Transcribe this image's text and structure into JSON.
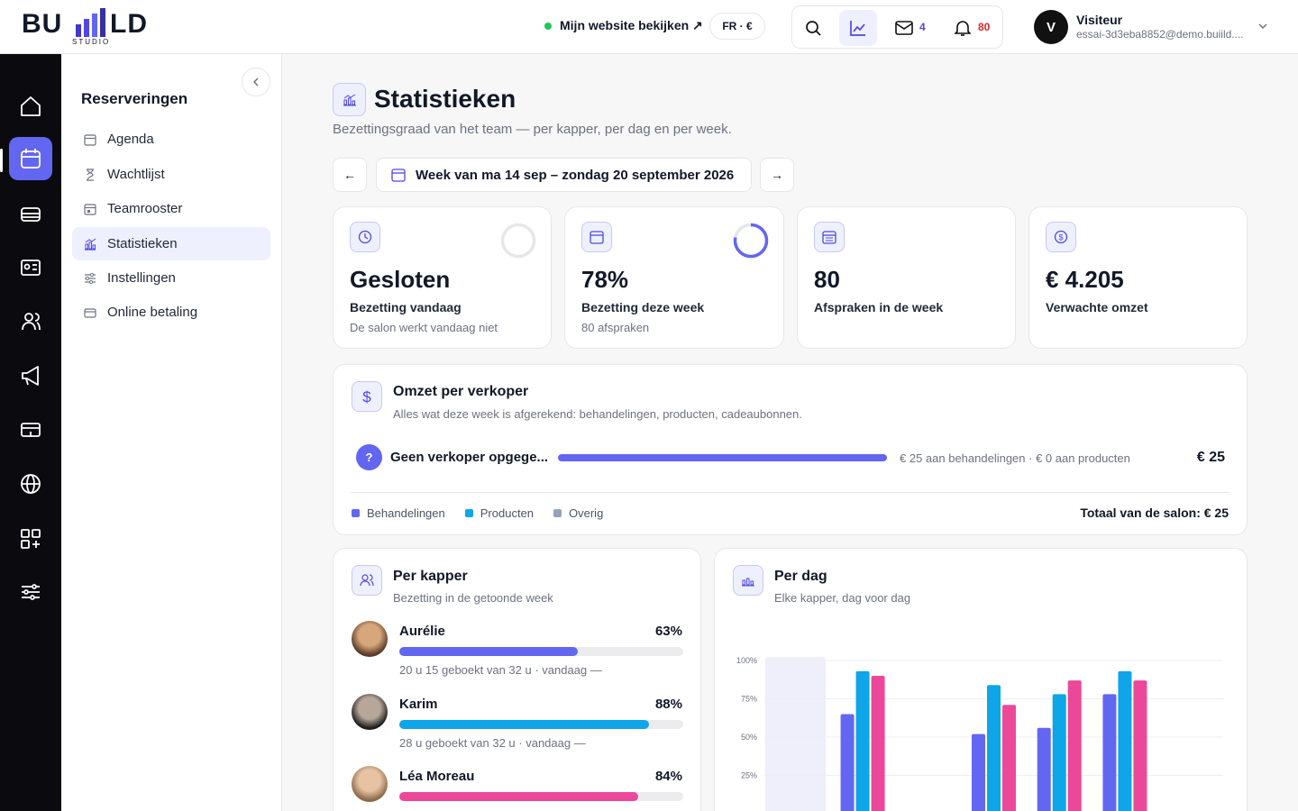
{
  "header": {
    "logo": {
      "left": "BU",
      "right": "LD",
      "sub": "STUDIO"
    },
    "website_link": "Mijn website bekijken ↗",
    "locale": "FR · €",
    "messages": 4,
    "notifications": 80,
    "user": {
      "initial": "V",
      "name": "Visiteur",
      "email": "essai-3d3eba8852@demo.buiild...."
    }
  },
  "sidebar": {
    "title": "Reserveringen",
    "items": [
      "Agenda",
      "Wachtlijst",
      "Teamrooster",
      "Statistieken",
      "Instellingen",
      "Online betaling"
    ]
  },
  "page": {
    "title": "Statistieken",
    "subtitle": "Bezettingsgraad van het team — per kapper, per dag en per week.",
    "prev": "←",
    "week": "Week van ma 14 sep – zondag 20 september 2026",
    "next": "→"
  },
  "kpis": [
    {
      "value": "Gesloten",
      "label": "Bezetting vandaag",
      "note": "De salon werkt vandaag niet"
    },
    {
      "value": 78,
      "value_label": "78%",
      "label": "Bezetting deze week",
      "note": "80 afspraken"
    },
    {
      "value": 80,
      "label": "Afspraken in de week"
    },
    {
      "value": "€ 4.205",
      "label": "Verwachte omzet"
    }
  ],
  "revenue": {
    "title": "Omzet per verkoper",
    "subtitle": "Alles wat deze week is afgerekend: behandelingen, producten, cadeaubonnen.",
    "rows": [
      {
        "badge": "?",
        "name": "Geen verkoper opgege...",
        "detail": "€ 25 aan behandelingen · € 0 aan producten",
        "total": 25,
        "total_label": "€ 25",
        "color": "#6366f1"
      }
    ],
    "legend": [
      {
        "name": "Behandelingen",
        "color": "#6366f1"
      },
      {
        "name": "Producten",
        "color": "#0ea5e9"
      },
      {
        "name": "Overig",
        "color": "#94a3b8"
      }
    ],
    "salon_total": "Totaal van de salon: € 25"
  },
  "per_kapper": {
    "title": "Per kapper",
    "subtitle": "Bezetting in de getoonde week",
    "rows": [
      {
        "name": "Aurélie",
        "value": 63,
        "value_label": "63%",
        "note": "20 u 15 geboekt van 32 u · vandaag —",
        "color": "#6366f1"
      },
      {
        "name": "Karim",
        "value": 88,
        "value_label": "88%",
        "note": "28 u geboekt van 32 u · vandaag —",
        "color": "#0ea5e9"
      },
      {
        "name": "Léa Moreau",
        "value": 84,
        "value_label": "84%",
        "color": "#ec4899"
      }
    ]
  },
  "chart_data": {
    "type": "bar",
    "title": "Per dag",
    "subtitle": "Elke kapper, dag voor dag",
    "categories": [
      null,
      null,
      null,
      null,
      null,
      null,
      null
    ],
    "series": [
      {
        "color": "#6366f1",
        "values": [
          null,
          65,
          null,
          52,
          56,
          78,
          null
        ]
      },
      {
        "color": "#0ea5e9",
        "values": [
          null,
          93,
          null,
          84,
          78,
          93,
          null
        ]
      },
      {
        "color": "#ec4899",
        "values": [
          null,
          90,
          null,
          71,
          87,
          87,
          null
        ]
      }
    ],
    "ylim": [
      0,
      100
    ],
    "yticks": [
      {
        "value": 25,
        "label": "25%"
      },
      {
        "value": 50,
        "label": "50%"
      },
      {
        "value": 75,
        "label": "75%"
      },
      {
        "value": 100,
        "label": "100%"
      }
    ],
    "grid": true
  }
}
